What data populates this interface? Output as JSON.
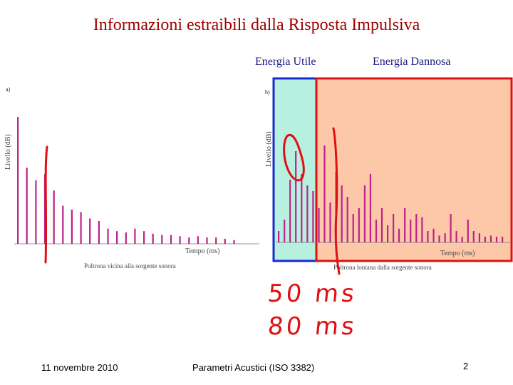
{
  "slide": {
    "title": "Informazioni estraibili dalla Risposta Impulsiva",
    "label_useful": "Energia Utile",
    "label_harmful": "Energia Dannosa",
    "footer_date": "11 novembre 2010",
    "footer_center": "Parametri Acustici (ISO 3382)",
    "page_number": "2"
  },
  "colors": {
    "title": "#a00000",
    "useful_fill": "#b8f0e0",
    "useful_border": "#1a2ad0",
    "harmful_fill": "#fcc8a8",
    "harmful_border": "#e01010",
    "bars": "#c0208a",
    "ink": "#e01010"
  },
  "chart_data": [
    {
      "type": "bar",
      "panel": "a)",
      "ylabel": "Livello (dB)",
      "xlabel": "Tempo (ms)",
      "caption": "Poltrona vicina alla sorgente sonora",
      "values": [
        1.0,
        0.6,
        0.5,
        0.55,
        0.42,
        0.3,
        0.27,
        0.25,
        0.2,
        0.18,
        0.12,
        0.1,
        0.09,
        0.12,
        0.1,
        0.08,
        0.07,
        0.07,
        0.06,
        0.05,
        0.06,
        0.05,
        0.05,
        0.04,
        0.03
      ]
    },
    {
      "type": "bar",
      "panel": "b)",
      "ylabel": "Livello (dB)",
      "xlabel": "Tempo (ms)",
      "caption": "Poltrona lontana dalla sorgente sonora",
      "values": [
        0.1,
        0.2,
        0.55,
        0.8,
        0.6,
        0.5,
        0.45,
        0.3,
        0.85,
        0.35,
        0.62,
        0.5,
        0.4,
        0.25,
        0.3,
        0.5,
        0.6,
        0.2,
        0.3,
        0.15,
        0.25,
        0.12,
        0.3,
        0.2,
        0.25,
        0.22,
        0.1,
        0.12,
        0.06,
        0.08,
        0.25,
        0.1,
        0.05,
        0.2,
        0.1,
        0.08,
        0.05,
        0.06,
        0.05,
        0.05
      ]
    }
  ],
  "annotations": {
    "line1": "50 ms",
    "line2": "80 ms"
  }
}
